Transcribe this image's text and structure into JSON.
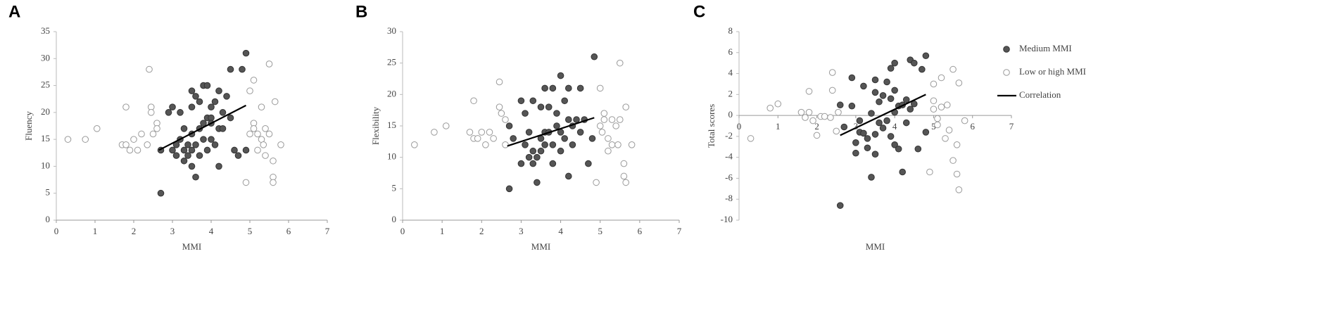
{
  "chart_data": [
    {
      "type": "scatter",
      "panel_label": "A",
      "xlabel": "MMI",
      "ylabel": "Fluency",
      "xlim": [
        0,
        7
      ],
      "xticks": [
        0,
        1,
        2,
        3,
        4,
        5,
        6,
        7
      ],
      "ylim": [
        0,
        35
      ],
      "yticks": [
        0,
        5,
        10,
        15,
        20,
        25,
        30,
        35
      ],
      "series": [
        {
          "color": "#555555",
          "x": [
            2.7,
            2.7,
            2.9,
            3.0,
            3.0,
            3.1,
            3.2,
            3.2,
            3.3,
            3.3,
            3.4,
            3.4,
            3.5,
            3.5,
            3.5,
            3.5,
            3.5,
            3.6,
            3.6,
            3.6,
            3.7,
            3.7,
            3.7,
            3.8,
            3.8,
            3.8,
            3.9,
            3.9,
            3.9,
            4.0,
            4.0,
            4.0,
            4.1,
            4.1,
            4.2,
            4.2,
            4.2,
            4.3,
            4.3,
            4.4,
            4.5,
            4.5,
            4.6,
            4.8,
            4.9,
            4.9,
            4.7,
            4.0,
            3.3,
            3.1
          ],
          "values": [
            5,
            13,
            20,
            13,
            21,
            12,
            15,
            20,
            11,
            13,
            14,
            12,
            24,
            16,
            13,
            21,
            10,
            23,
            14,
            8,
            17,
            22,
            12,
            25,
            18,
            15,
            25,
            19,
            13,
            19,
            15,
            21,
            22,
            14,
            24,
            17,
            10,
            20,
            17,
            23,
            28,
            19,
            13,
            28,
            31,
            13,
            12,
            18,
            17,
            14
          ]
        },
        {
          "color": "#ffffff",
          "x": [
            0.3,
            0.75,
            1.05,
            1.7,
            1.8,
            1.8,
            1.9,
            2.0,
            2.1,
            2.2,
            2.35,
            2.4,
            2.45,
            2.45,
            2.5,
            2.6,
            2.6,
            4.9,
            5.0,
            5.0,
            5.1,
            5.1,
            5.1,
            5.2,
            5.2,
            5.3,
            5.3,
            5.35,
            5.4,
            5.4,
            5.5,
            5.5,
            5.6,
            5.6,
            5.6,
            5.65,
            5.8
          ],
          "values": [
            15,
            15,
            17,
            14,
            21,
            14,
            13,
            15,
            13,
            16,
            14,
            28,
            21,
            20,
            16,
            18,
            17,
            7,
            16,
            24,
            26,
            18,
            17,
            16,
            13,
            21,
            15,
            14,
            17,
            12,
            29,
            16,
            11,
            8,
            7,
            22,
            14
          ]
        },
        {
          "type": "line",
          "color": "#000000",
          "x": [
            2.65,
            4.9
          ],
          "values": [
            13,
            21.3
          ]
        }
      ]
    },
    {
      "type": "scatter",
      "panel_label": "B",
      "xlabel": "MMI",
      "ylabel": "Flexibility",
      "xlim": [
        0,
        7
      ],
      "xticks": [
        0,
        1,
        2,
        3,
        4,
        5,
        6,
        7
      ],
      "ylim": [
        0,
        30
      ],
      "yticks": [
        0,
        5,
        10,
        15,
        20,
        25,
        30
      ],
      "series": [
        {
          "color": "#555555",
          "x": [
            2.7,
            2.7,
            2.8,
            3.0,
            3.0,
            3.1,
            3.1,
            3.2,
            3.2,
            3.3,
            3.3,
            3.3,
            3.4,
            3.4,
            3.5,
            3.5,
            3.5,
            3.6,
            3.6,
            3.6,
            3.7,
            3.7,
            3.8,
            3.8,
            3.8,
            3.9,
            3.9,
            4.0,
            4.0,
            4.0,
            4.1,
            4.1,
            4.2,
            4.2,
            4.2,
            4.3,
            4.3,
            4.4,
            4.5,
            4.5,
            4.6,
            4.7,
            4.8,
            4.85
          ],
          "values": [
            5,
            15,
            13,
            19,
            9,
            17,
            12,
            10,
            14,
            19,
            11,
            9,
            10,
            6,
            11,
            13,
            18,
            21,
            14,
            12,
            18,
            14,
            21,
            12,
            9,
            17,
            15,
            23,
            14,
            11,
            19,
            13,
            21,
            16,
            7,
            15,
            12,
            16,
            21,
            14,
            16,
            9,
            13,
            26
          ]
        },
        {
          "color": "#ffffff",
          "x": [
            0.3,
            0.8,
            1.1,
            1.7,
            1.8,
            1.8,
            1.9,
            2.0,
            2.1,
            2.2,
            2.3,
            2.45,
            2.45,
            2.5,
            2.6,
            2.6,
            4.9,
            5.0,
            5.0,
            5.05,
            5.1,
            5.1,
            5.2,
            5.2,
            5.3,
            5.3,
            5.4,
            5.45,
            5.5,
            5.5,
            5.6,
            5.6,
            5.65,
            5.65,
            5.8
          ],
          "values": [
            12,
            14,
            15,
            14,
            19,
            13,
            13,
            14,
            12,
            14,
            13,
            22,
            18,
            17,
            16,
            12,
            6,
            21,
            15,
            14,
            17,
            16,
            11,
            13,
            12,
            16,
            15,
            12,
            25,
            16,
            9,
            7,
            6,
            18,
            12
          ]
        },
        {
          "type": "line",
          "color": "#000000",
          "x": [
            2.65,
            4.85
          ],
          "values": [
            11.8,
            16.3
          ]
        }
      ]
    },
    {
      "type": "scatter",
      "panel_label": "C",
      "xlabel": "MMI",
      "ylabel": "Total scores",
      "xlim": [
        0,
        7
      ],
      "xticks": [
        0,
        1,
        2,
        3,
        4,
        5,
        6,
        7
      ],
      "ylim": [
        -10,
        8
      ],
      "yticks": [
        -10,
        -8,
        -6,
        -4,
        -2,
        0,
        2,
        4,
        6,
        8
      ],
      "series": [
        {
          "name": "Medium MMI",
          "color": "#555555",
          "x": [
            2.6,
            2.6,
            2.7,
            2.9,
            2.9,
            3.0,
            3.0,
            3.1,
            3.1,
            3.2,
            3.2,
            3.3,
            3.3,
            3.4,
            3.4,
            3.5,
            3.5,
            3.5,
            3.5,
            3.6,
            3.6,
            3.7,
            3.7,
            3.8,
            3.8,
            3.9,
            3.9,
            3.9,
            4.0,
            4.0,
            4.0,
            4.1,
            4.1,
            4.2,
            4.2,
            4.3,
            4.3,
            4.4,
            4.4,
            4.5,
            4.5,
            4.6,
            4.7,
            4.8,
            4.8,
            4.0
          ],
          "values": [
            -8.6,
            1.0,
            -1.1,
            3.6,
            0.9,
            -3.6,
            -2.6,
            -0.5,
            -1.6,
            2.8,
            -1.7,
            -2.2,
            -3.1,
            -5.9,
            0.2,
            3.4,
            2.2,
            -1.8,
            -3.7,
            1.3,
            -0.7,
            1.9,
            -1.2,
            3.2,
            -0.5,
            4.5,
            1.6,
            -2.0,
            2.4,
            0.3,
            -2.8,
            0.9,
            -3.2,
            1.0,
            -5.4,
            1.5,
            -0.7,
            5.3,
            0.6,
            5.0,
            1.1,
            -3.2,
            4.4,
            5.7,
            -1.6,
            5.0
          ]
        },
        {
          "name": "Low or high MMI",
          "color": "#ffffff",
          "x": [
            0.3,
            0.8,
            1.0,
            1.6,
            1.7,
            1.8,
            1.8,
            1.9,
            2.0,
            2.1,
            2.2,
            2.35,
            2.4,
            2.4,
            2.5,
            2.55,
            4.9,
            5.0,
            5.0,
            5.0,
            5.1,
            5.1,
            5.2,
            5.2,
            5.3,
            5.35,
            5.4,
            5.5,
            5.5,
            5.6,
            5.6,
            5.65,
            5.65,
            5.8
          ],
          "values": [
            -2.2,
            0.7,
            1.1,
            0.3,
            -0.2,
            2.3,
            0.3,
            -0.5,
            -1.9,
            -0.1,
            -0.1,
            -0.2,
            4.1,
            2.4,
            -1.5,
            0.3,
            -5.4,
            3.0,
            1.4,
            0.6,
            -0.3,
            -0.9,
            3.6,
            0.8,
            -2.2,
            1.0,
            -1.4,
            4.4,
            -4.3,
            -5.6,
            -2.8,
            -7.1,
            3.1,
            -0.5
          ]
        },
        {
          "name": "Correlation",
          "type": "line",
          "color": "#000000",
          "x": [
            2.6,
            4.8
          ],
          "values": [
            -1.9,
            2.0
          ]
        }
      ]
    }
  ]
}
